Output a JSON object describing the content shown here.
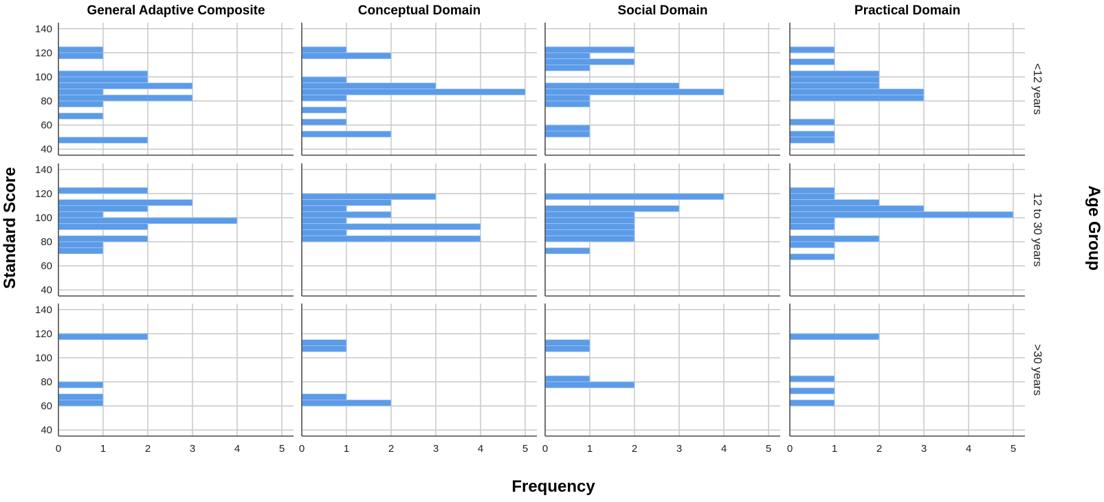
{
  "colors": {
    "bar": "#5b9be8",
    "bar_edge": "#a8c8f2",
    "grid": "#c8c8c8",
    "axis": "#4a4a4a"
  },
  "chart_data": {
    "type": "bar",
    "orientation": "horizontal",
    "layout": "faceted histogram grid (rows = age group, columns = domain)",
    "xlabel": "Frequency",
    "ylabel": "Standard Score",
    "row_variable": "Age Group",
    "columns": [
      "General Adaptive Composite",
      "Conceptual Domain",
      "Social Domain",
      "Practical Domain"
    ],
    "rows": [
      "<12 years",
      "12 to 30 years",
      ">30 years"
    ],
    "xlim": [
      0,
      5.25
    ],
    "ylim": [
      35,
      145
    ],
    "x_ticks": [
      0,
      1,
      2,
      3,
      4,
      5
    ],
    "y_ticks": [
      40,
      60,
      80,
      100,
      120,
      140
    ],
    "bin_width": 5,
    "grid": true,
    "panels": [
      {
        "row": "<12 years",
        "column": "General Adaptive Composite",
        "bins": [
          [
            120,
            1
          ],
          [
            115,
            1
          ],
          [
            100,
            2
          ],
          [
            95,
            2
          ],
          [
            90,
            3
          ],
          [
            85,
            1
          ],
          [
            80,
            3
          ],
          [
            75,
            1
          ],
          [
            65,
            1
          ],
          [
            45,
            2
          ]
        ]
      },
      {
        "row": "<12 years",
        "column": "Conceptual Domain",
        "bins": [
          [
            120,
            1
          ],
          [
            115,
            2
          ],
          [
            95,
            1
          ],
          [
            90,
            3
          ],
          [
            85,
            5
          ],
          [
            80,
            1
          ],
          [
            70,
            1
          ],
          [
            60,
            1
          ],
          [
            50,
            2
          ]
        ]
      },
      {
        "row": "<12 years",
        "column": "Social Domain",
        "bins": [
          [
            120,
            2
          ],
          [
            115,
            1
          ],
          [
            110,
            2
          ],
          [
            105,
            1
          ],
          [
            90,
            3
          ],
          [
            85,
            4
          ],
          [
            80,
            1
          ],
          [
            75,
            1
          ],
          [
            55,
            1
          ],
          [
            50,
            1
          ]
        ]
      },
      {
        "row": "<12 years",
        "column": "Practical Domain",
        "bins": [
          [
            120,
            1
          ],
          [
            110,
            1
          ],
          [
            100,
            2
          ],
          [
            95,
            2
          ],
          [
            90,
            2
          ],
          [
            85,
            3
          ],
          [
            80,
            3
          ],
          [
            60,
            1
          ],
          [
            50,
            1
          ],
          [
            45,
            1
          ]
        ]
      },
      {
        "row": "12 to 30 years",
        "column": "General Adaptive Composite",
        "bins": [
          [
            120,
            2
          ],
          [
            110,
            3
          ],
          [
            105,
            2
          ],
          [
            100,
            1
          ],
          [
            95,
            4
          ],
          [
            90,
            2
          ],
          [
            80,
            2
          ],
          [
            75,
            1
          ],
          [
            70,
            1
          ]
        ]
      },
      {
        "row": "12 to 30 years",
        "column": "Conceptual Domain",
        "bins": [
          [
            115,
            3
          ],
          [
            110,
            2
          ],
          [
            105,
            1
          ],
          [
            100,
            2
          ],
          [
            95,
            1
          ],
          [
            90,
            4
          ],
          [
            85,
            1
          ],
          [
            80,
            4
          ]
        ]
      },
      {
        "row": "12 to 30 years",
        "column": "Social Domain",
        "bins": [
          [
            115,
            4
          ],
          [
            105,
            3
          ],
          [
            100,
            2
          ],
          [
            95,
            2
          ],
          [
            90,
            2
          ],
          [
            85,
            2
          ],
          [
            80,
            2
          ],
          [
            70,
            1
          ]
        ]
      },
      {
        "row": "12 to 30 years",
        "column": "Practical Domain",
        "bins": [
          [
            120,
            1
          ],
          [
            115,
            1
          ],
          [
            110,
            2
          ],
          [
            105,
            3
          ],
          [
            100,
            5
          ],
          [
            95,
            1
          ],
          [
            90,
            1
          ],
          [
            80,
            2
          ],
          [
            75,
            1
          ],
          [
            65,
            1
          ]
        ]
      },
      {
        "row": ">30 years",
        "column": "General Adaptive Composite",
        "bins": [
          [
            115,
            2
          ],
          [
            75,
            1
          ],
          [
            65,
            1
          ],
          [
            60,
            1
          ]
        ]
      },
      {
        "row": ">30 years",
        "column": "Conceptual Domain",
        "bins": [
          [
            110,
            1
          ],
          [
            105,
            1
          ],
          [
            65,
            1
          ],
          [
            60,
            2
          ]
        ]
      },
      {
        "row": ">30 years",
        "column": "Social Domain",
        "bins": [
          [
            110,
            1
          ],
          [
            105,
            1
          ],
          [
            80,
            1
          ],
          [
            75,
            2
          ]
        ]
      },
      {
        "row": ">30 years",
        "column": "Practical Domain",
        "bins": [
          [
            115,
            2
          ],
          [
            80,
            1
          ],
          [
            70,
            1
          ],
          [
            60,
            1
          ]
        ]
      }
    ]
  }
}
